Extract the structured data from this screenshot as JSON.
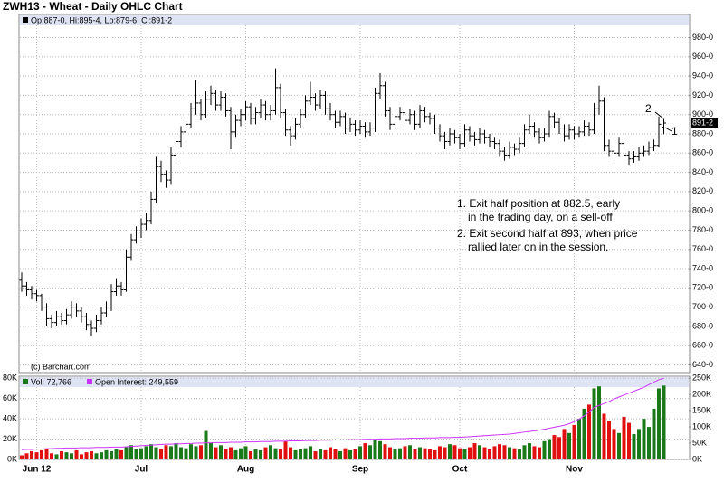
{
  "chart_data": {
    "type": "ohlc",
    "title": "ZWH13 - Wheat - Daily OHLC Chart",
    "header": "Op:887-0, Hi:895-4, Lo:879-6, Cl:891-2",
    "copyright": "(c) Barchart.com",
    "last_label": "891-2",
    "annotations": [
      "1. Exit half position at 882.5, early",
      "in the trading day, on a sell-off",
      "2. Exit second half at 893, when price",
      "rallied later on in the session."
    ],
    "markers": [
      "1",
      "2"
    ],
    "bar_color": "#000000",
    "grid": true,
    "ylim": [
      632,
      1004
    ],
    "yticks": [
      {
        "value": 640,
        "label": "640-0"
      },
      {
        "value": 660,
        "label": "660-0"
      },
      {
        "value": 680,
        "label": "680-0"
      },
      {
        "value": 700,
        "label": "700-0"
      },
      {
        "value": 720,
        "label": "720-0"
      },
      {
        "value": 740,
        "label": "740-0"
      },
      {
        "value": 760,
        "label": "760-0"
      },
      {
        "value": 780,
        "label": "780-0"
      },
      {
        "value": 800,
        "label": "800-0"
      },
      {
        "value": 820,
        "label": "820-0"
      },
      {
        "value": 840,
        "label": "840-0"
      },
      {
        "value": 860,
        "label": "860-0"
      },
      {
        "value": 880,
        "label": "880-0"
      },
      {
        "value": 900,
        "label": "900-0"
      },
      {
        "value": 920,
        "label": "920-0"
      },
      {
        "value": 940,
        "label": "940-0"
      },
      {
        "value": 960,
        "label": "960-0"
      },
      {
        "value": 980,
        "label": "980-0"
      }
    ],
    "categories": [
      null,
      null,
      null,
      "Jun 12",
      null,
      null,
      null,
      null,
      null,
      null,
      null,
      null,
      null,
      null,
      null,
      null,
      null,
      null,
      null,
      null,
      null,
      null,
      null,
      null,
      "Jul",
      null,
      null,
      null,
      null,
      null,
      null,
      null,
      null,
      null,
      null,
      null,
      null,
      null,
      null,
      null,
      null,
      null,
      null,
      null,
      null,
      "Aug",
      null,
      null,
      null,
      null,
      null,
      null,
      null,
      null,
      null,
      null,
      null,
      null,
      null,
      null,
      null,
      null,
      null,
      null,
      null,
      null,
      null,
      null,
      "Sep",
      null,
      null,
      null,
      null,
      null,
      null,
      null,
      null,
      null,
      null,
      null,
      null,
      null,
      null,
      null,
      null,
      null,
      null,
      null,
      "Oct",
      null,
      null,
      null,
      null,
      null,
      null,
      null,
      null,
      null,
      null,
      null,
      null,
      null,
      null,
      null,
      null,
      null,
      null,
      null,
      null,
      null,
      null,
      "Nov",
      null,
      null,
      null,
      null,
      null,
      null,
      null,
      null,
      null,
      null,
      null,
      null,
      null,
      null,
      null,
      null,
      null,
      null
    ],
    "ohlc": [
      [
        728,
        736,
        716,
        722
      ],
      [
        722,
        726,
        712,
        718
      ],
      [
        718,
        722,
        708,
        714
      ],
      [
        714,
        718,
        706,
        712
      ],
      [
        712,
        714,
        696,
        700
      ],
      [
        700,
        704,
        680,
        688
      ],
      [
        688,
        692,
        678,
        684
      ],
      [
        684,
        696,
        680,
        690
      ],
      [
        690,
        694,
        682,
        686
      ],
      [
        686,
        698,
        682,
        692
      ],
      [
        692,
        706,
        688,
        700
      ],
      [
        700,
        704,
        690,
        696
      ],
      [
        696,
        700,
        684,
        690
      ],
      [
        690,
        694,
        676,
        682
      ],
      [
        682,
        686,
        670,
        678
      ],
      [
        678,
        692,
        674,
        686
      ],
      [
        686,
        700,
        682,
        694
      ],
      [
        694,
        706,
        690,
        700
      ],
      [
        700,
        724,
        696,
        716
      ],
      [
        716,
        730,
        712,
        722
      ],
      [
        722,
        726,
        712,
        718
      ],
      [
        718,
        760,
        716,
        752
      ],
      [
        752,
        776,
        748,
        770
      ],
      [
        770,
        784,
        766,
        778
      ],
      [
        778,
        792,
        772,
        786
      ],
      [
        786,
        798,
        780,
        790
      ],
      [
        790,
        820,
        786,
        812
      ],
      [
        812,
        856,
        808,
        846
      ],
      [
        846,
        852,
        830,
        838
      ],
      [
        838,
        842,
        824,
        832
      ],
      [
        832,
        866,
        828,
        858
      ],
      [
        858,
        878,
        852,
        872
      ],
      [
        872,
        888,
        866,
        882
      ],
      [
        882,
        896,
        876,
        890
      ],
      [
        890,
        912,
        886,
        906
      ],
      [
        906,
        936,
        900,
        912
      ],
      [
        912,
        916,
        894,
        900
      ],
      [
        900,
        924,
        896,
        916
      ],
      [
        916,
        930,
        910,
        922
      ],
      [
        922,
        926,
        904,
        910
      ],
      [
        910,
        924,
        904,
        918
      ],
      [
        918,
        922,
        898,
        904
      ],
      [
        904,
        908,
        864,
        882
      ],
      [
        882,
        900,
        876,
        894
      ],
      [
        894,
        906,
        888,
        900
      ],
      [
        900,
        914,
        894,
        908
      ],
      [
        908,
        912,
        890,
        896
      ],
      [
        896,
        908,
        890,
        902
      ],
      [
        902,
        916,
        896,
        910
      ],
      [
        910,
        914,
        894,
        900
      ],
      [
        900,
        910,
        894,
        904
      ],
      [
        904,
        948,
        900,
        928
      ],
      [
        928,
        932,
        896,
        902
      ],
      [
        902,
        906,
        878,
        884
      ],
      [
        884,
        888,
        868,
        878
      ],
      [
        878,
        896,
        874,
        890
      ],
      [
        890,
        906,
        886,
        900
      ],
      [
        900,
        920,
        896,
        914
      ],
      [
        914,
        934,
        910,
        918
      ],
      [
        918,
        922,
        904,
        910
      ],
      [
        910,
        926,
        906,
        920
      ],
      [
        920,
        924,
        900,
        906
      ],
      [
        906,
        912,
        894,
        900
      ],
      [
        900,
        904,
        886,
        892
      ],
      [
        892,
        904,
        888,
        898
      ],
      [
        898,
        902,
        880,
        886
      ],
      [
        886,
        896,
        882,
        890
      ],
      [
        890,
        894,
        878,
        884
      ],
      [
        884,
        894,
        880,
        888
      ],
      [
        888,
        892,
        876,
        882
      ],
      [
        882,
        892,
        878,
        886
      ],
      [
        886,
        928,
        882,
        922
      ],
      [
        922,
        943,
        916,
        930
      ],
      [
        930,
        934,
        898,
        904
      ],
      [
        904,
        908,
        884,
        890
      ],
      [
        890,
        904,
        886,
        898
      ],
      [
        898,
        908,
        894,
        902
      ],
      [
        902,
        906,
        888,
        894
      ],
      [
        894,
        906,
        890,
        900
      ],
      [
        900,
        904,
        884,
        890
      ],
      [
        890,
        910,
        886,
        904
      ],
      [
        904,
        908,
        892,
        898
      ],
      [
        898,
        902,
        890,
        896
      ],
      [
        896,
        900,
        880,
        886
      ],
      [
        886,
        890,
        872,
        878
      ],
      [
        878,
        882,
        864,
        872
      ],
      [
        872,
        886,
        868,
        880
      ],
      [
        880,
        884,
        870,
        876
      ],
      [
        876,
        880,
        864,
        870
      ],
      [
        870,
        890,
        866,
        884
      ],
      [
        884,
        888,
        872,
        878
      ],
      [
        878,
        882,
        868,
        874
      ],
      [
        874,
        886,
        870,
        880
      ],
      [
        880,
        884,
        870,
        876
      ],
      [
        876,
        880,
        866,
        872
      ],
      [
        872,
        876,
        864,
        870
      ],
      [
        870,
        874,
        856,
        862
      ],
      [
        862,
        866,
        852,
        858
      ],
      [
        858,
        872,
        854,
        866
      ],
      [
        866,
        870,
        858,
        864
      ],
      [
        864,
        876,
        860,
        870
      ],
      [
        870,
        890,
        866,
        884
      ],
      [
        884,
        900,
        880,
        888
      ],
      [
        888,
        892,
        876,
        882
      ],
      [
        882,
        886,
        870,
        876
      ],
      [
        876,
        886,
        872,
        880
      ],
      [
        880,
        904,
        876,
        898
      ],
      [
        898,
        902,
        886,
        892
      ],
      [
        892,
        896,
        880,
        886
      ],
      [
        886,
        890,
        872,
        878
      ],
      [
        878,
        890,
        874,
        884
      ],
      [
        884,
        888,
        874,
        880
      ],
      [
        880,
        888,
        876,
        882
      ],
      [
        882,
        894,
        878,
        888
      ],
      [
        888,
        892,
        878,
        884
      ],
      [
        884,
        912,
        880,
        906
      ],
      [
        906,
        930,
        900,
        914
      ],
      [
        914,
        918,
        862,
        868
      ],
      [
        868,
        874,
        856,
        862
      ],
      [
        862,
        866,
        852,
        860
      ],
      [
        860,
        876,
        856,
        870
      ],
      [
        870,
        874,
        846,
        858
      ],
      [
        858,
        862,
        848,
        854
      ],
      [
        854,
        862,
        850,
        856
      ],
      [
        856,
        866,
        852,
        860
      ],
      [
        860,
        868,
        856,
        862
      ],
      [
        862,
        872,
        858,
        866
      ],
      [
        866,
        874,
        862,
        868
      ],
      [
        868,
        898,
        866,
        890
      ],
      [
        887,
        895.5,
        879.75,
        891.25
      ]
    ],
    "volume": {
      "header": "Vol: 72,766",
      "oi_header": "Open Interest: 249,559",
      "up_color": "#1a7a1a",
      "down_color": "#e01010",
      "oi_color": "#cc33ff",
      "vlim": [
        0,
        82000
      ],
      "vticks": [
        {
          "value": 0,
          "label": "0K"
        },
        {
          "value": 20000,
          "label": "20K"
        },
        {
          "value": 40000,
          "label": "40K"
        },
        {
          "value": 60000,
          "label": "60K"
        },
        {
          "value": 80000,
          "label": "80K"
        }
      ],
      "oilim": [
        0,
        256000
      ],
      "oiticks": [
        {
          "value": 0,
          "label": "0K"
        },
        {
          "value": 50000,
          "label": "50K"
        },
        {
          "value": 100000,
          "label": "100K"
        },
        {
          "value": 150000,
          "label": "150K"
        },
        {
          "value": 200000,
          "label": "200K"
        },
        {
          "value": 250000,
          "label": "250K"
        }
      ],
      "values": [
        4000,
        6000,
        8000,
        7000,
        9000,
        10000,
        6000,
        5000,
        8000,
        7000,
        6000,
        9000,
        5000,
        7000,
        8000,
        6000,
        7000,
        9000,
        8000,
        10000,
        9000,
        12000,
        14000,
        10000,
        11000,
        13000,
        15000,
        12000,
        10000,
        14000,
        13000,
        16000,
        12000,
        11000,
        15000,
        13000,
        14000,
        28000,
        16000,
        12000,
        14000,
        10000,
        12000,
        9000,
        11000,
        13000,
        8000,
        10000,
        9000,
        12000,
        14000,
        11000,
        10000,
        18000,
        12000,
        9000,
        10000,
        11000,
        13000,
        8000,
        10000,
        9000,
        12000,
        10000,
        8000,
        11000,
        9000,
        10000,
        13000,
        16000,
        14000,
        20000,
        18000,
        15000,
        12000,
        10000,
        11000,
        13000,
        14000,
        10000,
        12000,
        11000,
        10000,
        9000,
        13000,
        12000,
        15000,
        14000,
        11000,
        10000,
        12000,
        16000,
        14000,
        12000,
        10000,
        13000,
        15000,
        14000,
        12000,
        11000,
        10000,
        14000,
        16000,
        13000,
        12000,
        18000,
        20000,
        24000,
        22000,
        30000,
        26000,
        34000,
        40000,
        50000,
        54000,
        70000,
        72000,
        45000,
        38000,
        30000,
        26000,
        42000,
        36000,
        25000,
        30000,
        40000,
        32000,
        50000,
        70000,
        72766
      ],
      "open_interest": [
        30000,
        31000,
        31000,
        32000,
        32000,
        33000,
        33000,
        34000,
        34000,
        35000,
        35000,
        35000,
        36000,
        36000,
        36000,
        37000,
        37000,
        37000,
        38000,
        38000,
        38000,
        39000,
        40000,
        41000,
        42000,
        43000,
        44000,
        45000,
        46000,
        47000,
        47000,
        48000,
        48000,
        49000,
        49000,
        50000,
        50000,
        51000,
        51000,
        52000,
        52000,
        52000,
        53000,
        53000,
        53000,
        54000,
        54000,
        54000,
        55000,
        55000,
        55000,
        56000,
        56000,
        56000,
        57000,
        57000,
        57000,
        58000,
        58000,
        58000,
        59000,
        59000,
        59000,
        60000,
        60000,
        60000,
        61000,
        61000,
        61000,
        62000,
        62000,
        62000,
        63000,
        63000,
        63000,
        64000,
        64000,
        64000,
        65000,
        65000,
        65000,
        66000,
        66000,
        66000,
        67000,
        67000,
        67000,
        68000,
        68000,
        69000,
        70000,
        71000,
        72000,
        73000,
        74000,
        75000,
        76000,
        77000,
        78000,
        80000,
        82000,
        84000,
        86000,
        88000,
        90000,
        93000,
        96000,
        99000,
        102000,
        105000,
        110000,
        116000,
        124000,
        134000,
        146000,
        160000,
        166000,
        172000,
        178000,
        186000,
        192000,
        198000,
        204000,
        210000,
        216000,
        222000,
        230000,
        238000,
        245000,
        249559
      ]
    }
  }
}
